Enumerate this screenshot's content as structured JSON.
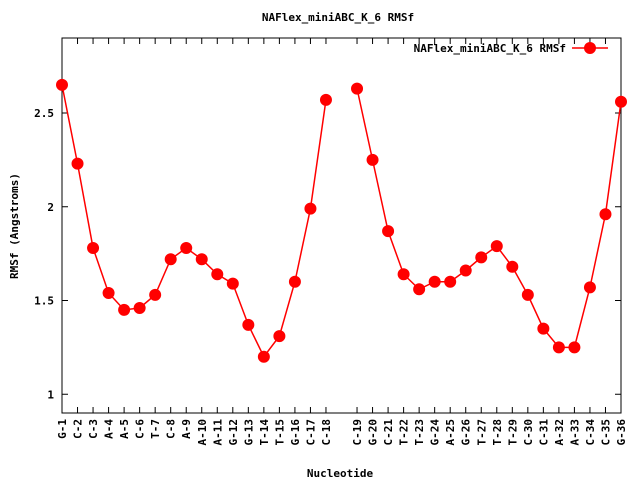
{
  "chart_data": {
    "type": "line",
    "title": "NAFlex_miniABC_K_6 RMSf",
    "xlabel": "Nucleotide",
    "ylabel": "RMSf (Angstroms)",
    "ylim": [
      0.9,
      2.9
    ],
    "yticks": [
      1,
      1.5,
      2,
      2.5
    ],
    "ytick_labels": [
      "1",
      "1.5",
      "2",
      "2.5"
    ],
    "grid": false,
    "legend_position": "top-right",
    "categories": [
      "G-1",
      "C-2",
      "C-3",
      "A-4",
      "A-5",
      "C-6",
      "T-7",
      "C-8",
      "A-9",
      "A-10",
      "A-11",
      "G-12",
      "G-13",
      "T-14",
      "T-15",
      "G-16",
      "C-17",
      "C-18",
      "C-19",
      "G-20",
      "C-21",
      "T-22",
      "T-23",
      "G-24",
      "A-25",
      "G-26",
      "T-27",
      "T-28",
      "T-29",
      "C-30",
      "C-31",
      "A-32",
      "A-33",
      "C-34",
      "C-35",
      "G-36"
    ],
    "x": [
      1,
      2,
      3,
      4,
      5,
      6,
      7,
      8,
      9,
      10,
      11,
      12,
      13,
      14,
      15,
      16,
      17,
      18,
      20,
      21,
      22,
      23,
      24,
      25,
      26,
      27,
      28,
      29,
      30,
      31,
      32,
      33,
      34,
      35,
      36,
      37
    ],
    "series": [
      {
        "name": "NAFlex_miniABC_K_6 RMSf",
        "color": "#ff0000",
        "segments": [
          [
            2.65,
            2.23,
            1.78,
            1.54,
            1.45,
            1.46,
            1.53,
            1.72,
            1.78,
            1.72,
            1.64,
            1.59,
            1.37,
            1.2,
            1.31,
            1.6,
            1.99,
            2.57
          ],
          [
            2.63,
            2.25,
            1.87,
            1.64,
            1.56,
            1.6,
            1.6,
            1.66,
            1.73,
            1.79,
            1.68,
            1.53,
            1.35,
            1.25,
            1.25,
            1.57,
            1.96,
            2.56
          ]
        ]
      }
    ]
  }
}
